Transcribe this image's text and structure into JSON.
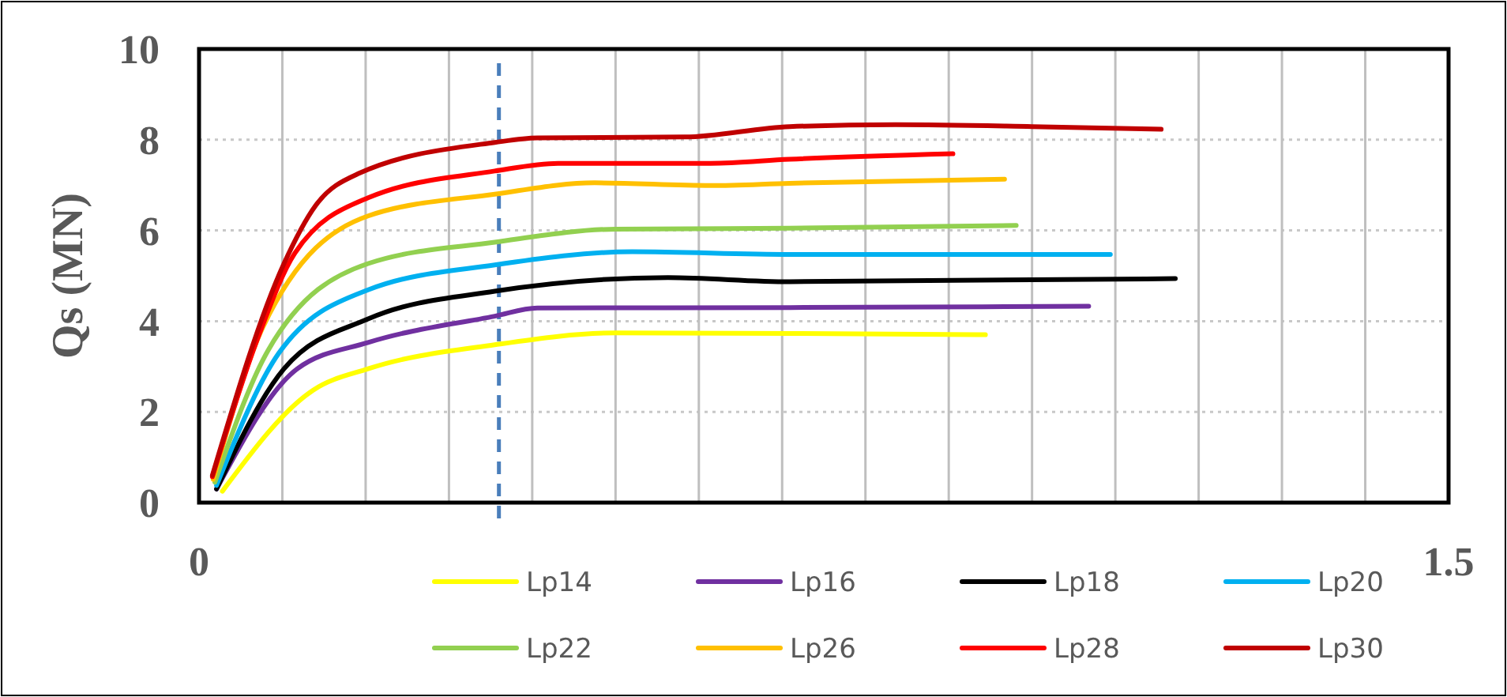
{
  "chart_data": {
    "type": "line",
    "ylabel": "Qs (MN)",
    "xlim": [
      0,
      1.5
    ],
    "xticks": [
      0,
      {
        "value": 0.1,
        "label": null
      },
      {
        "value": 0.2,
        "label": null
      },
      {
        "value": 0.3,
        "label": null
      },
      {
        "value": 0.4,
        "label": null
      },
      {
        "value": 0.5,
        "label": null
      },
      {
        "value": 0.6,
        "label": null
      },
      {
        "value": 0.7,
        "label": null
      },
      {
        "value": 0.8,
        "label": null
      },
      {
        "value": 0.9,
        "label": null
      },
      {
        "value": 1.0,
        "label": null
      },
      {
        "value": 1.1,
        "label": null
      },
      {
        "value": 1.2,
        "label": null
      },
      {
        "value": 1.3,
        "label": null
      },
      {
        "value": 1.4,
        "label": null
      },
      1.5
    ],
    "ylim": [
      0,
      10
    ],
    "yticks": [
      0,
      2,
      4,
      6,
      8,
      10
    ],
    "grid": true,
    "legend": "bottom",
    "marker": "none",
    "line_style": "solid",
    "ref_lines": [
      {
        "axis": "x",
        "value": 0.36,
        "color": "#4a7ebb",
        "line_style": "dashed"
      }
    ],
    "series": [
      {
        "name": "Lp14",
        "color": "#ffff00",
        "x": [
          0.028,
          0.137,
          0.203,
          0.355,
          0.5,
          0.71,
          0.944
        ],
        "values": [
          0.25,
          2.48,
          2.95,
          3.48,
          3.74,
          3.73,
          3.7
        ]
      },
      {
        "name": "Lp16",
        "color": "#7030a0",
        "x": [
          0.021,
          0.118,
          0.203,
          0.355,
          0.406,
          0.71,
          1.068
        ],
        "values": [
          0.3,
          2.95,
          3.53,
          4.11,
          4.29,
          4.3,
          4.33
        ]
      },
      {
        "name": "Lp18",
        "color": "#000000",
        "x": [
          0.021,
          0.102,
          0.203,
          0.355,
          0.563,
          0.709,
          1.172
        ],
        "values": [
          0.3,
          2.95,
          4.05,
          4.66,
          4.96,
          4.87,
          4.94
        ]
      },
      {
        "name": "Lp20",
        "color": "#00b0f0",
        "x": [
          0.021,
          0.096,
          0.203,
          0.355,
          0.52,
          0.709,
          1.094
        ],
        "values": [
          0.38,
          3.3,
          4.69,
          5.24,
          5.53,
          5.47,
          5.47
        ]
      },
      {
        "name": "Lp22",
        "color": "#92d050",
        "x": [
          0.019,
          0.083,
          0.203,
          0.355,
          0.5,
          0.709,
          0.981
        ],
        "values": [
          0.45,
          3.36,
          5.27,
          5.74,
          6.03,
          6.05,
          6.11
        ]
      },
      {
        "name": "Lp26",
        "color": "#ffc000",
        "x": [
          0.017,
          0.077,
          0.203,
          0.355,
          0.475,
          0.614,
          0.709,
          0.967
        ],
        "values": [
          0.51,
          3.88,
          6.32,
          6.8,
          7.05,
          6.99,
          7.04,
          7.13
        ]
      },
      {
        "name": "Lp28",
        "color": "#ff0000",
        "x": [
          0.016,
          0.071,
          0.115,
          0.203,
          0.355,
          0.431,
          0.614,
          0.709,
          0.905
        ],
        "values": [
          0.57,
          3.65,
          5.5,
          6.72,
          7.31,
          7.48,
          7.48,
          7.57,
          7.69
        ]
      },
      {
        "name": "Lp30",
        "color": "#c00000",
        "x": [
          0.016,
          0.102,
          0.14,
          0.191,
          0.355,
          0.406,
          0.583,
          0.709,
          0.836,
          1.0,
          1.155
        ],
        "values": [
          0.6,
          5.27,
          6.55,
          7.25,
          7.94,
          8.04,
          8.06,
          8.29,
          8.33,
          8.29,
          8.23
        ]
      }
    ]
  }
}
